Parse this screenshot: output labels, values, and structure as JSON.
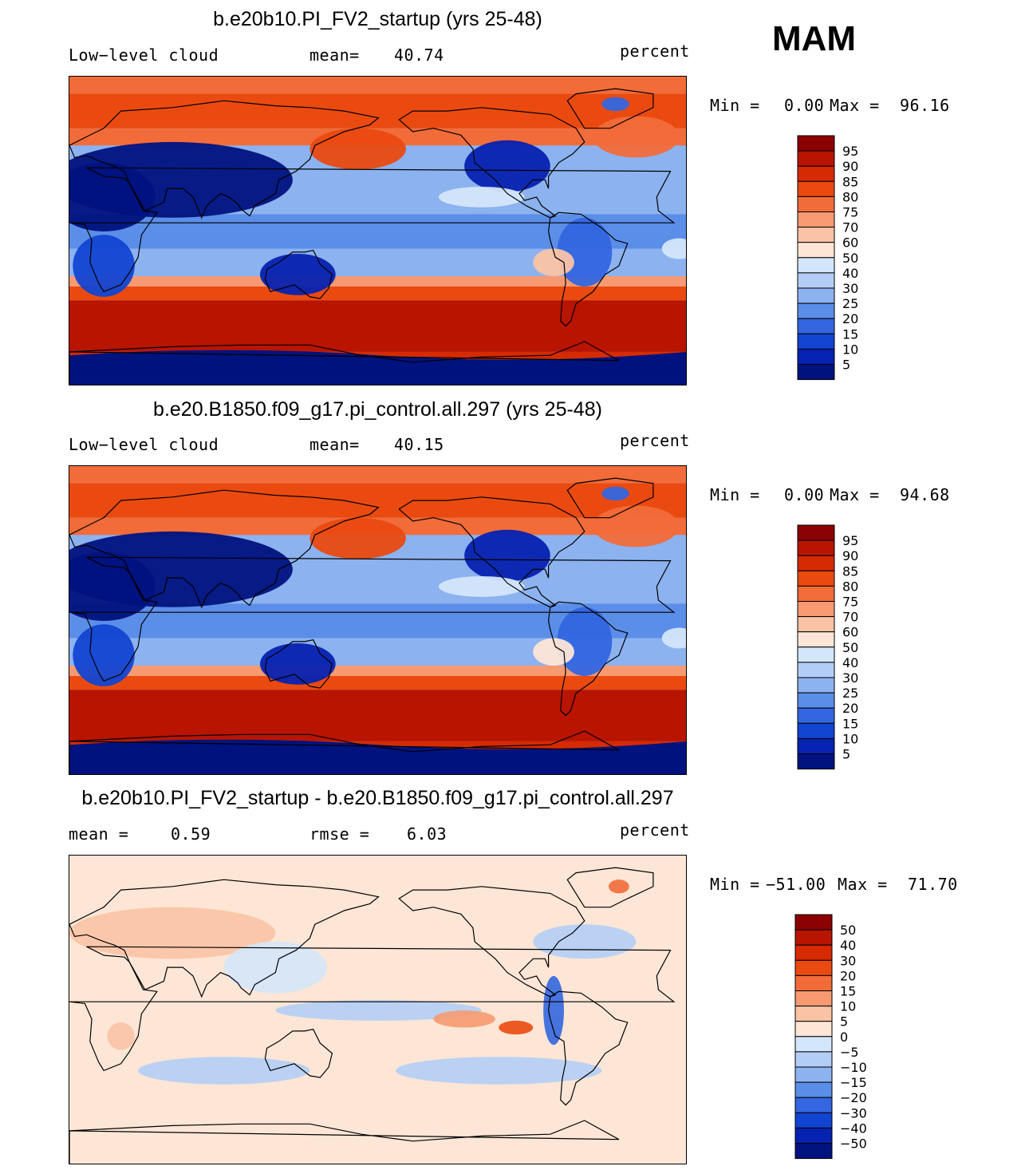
{
  "season": "MAM",
  "units": "percent",
  "chart_data": [
    {
      "type": "heatmap",
      "title": "b.e20b10.PI_FV2_startup (yrs 25-48)",
      "variable": "Low−level cloud",
      "stat_label": "mean=",
      "stat_value": "40.74",
      "units": "percent",
      "minmax": {
        "min_label": "Min =",
        "min": "0.00",
        "max_label": "Max =",
        "max": "96.16"
      },
      "colorbar": {
        "labels": [
          "95",
          "90",
          "85",
          "80",
          "75",
          "70",
          "60",
          "50",
          "40",
          "30",
          "25",
          "20",
          "15",
          "10",
          "5"
        ],
        "colors": [
          "#8b0000",
          "#b81400",
          "#d62a00",
          "#ea4a10",
          "#f26c3a",
          "#f79a72",
          "#fbc3a5",
          "#fde6d6",
          "#d4e6fa",
          "#b2cef6",
          "#8cb2f0",
          "#5b8ee8",
          "#3366e0",
          "#1244d2",
          "#0622b0",
          "#00127e"
        ]
      },
      "map_field": "model_a"
    },
    {
      "type": "heatmap",
      "title": "b.e20.B1850.f09_g17.pi_control.all.297 (yrs 25-48)",
      "variable": "Low−level cloud",
      "stat_label": "mean=",
      "stat_value": "40.15",
      "units": "percent",
      "minmax": {
        "min_label": "Min =",
        "min": "0.00",
        "max_label": "Max =",
        "max": "94.68"
      },
      "colorbar": {
        "labels": [
          "95",
          "90",
          "85",
          "80",
          "75",
          "70",
          "60",
          "50",
          "40",
          "30",
          "25",
          "20",
          "15",
          "10",
          "5"
        ],
        "colors": [
          "#8b0000",
          "#b81400",
          "#d62a00",
          "#ea4a10",
          "#f26c3a",
          "#f79a72",
          "#fbc3a5",
          "#fde6d6",
          "#d4e6fa",
          "#b2cef6",
          "#8cb2f0",
          "#5b8ee8",
          "#3366e0",
          "#1244d2",
          "#0622b0",
          "#00127e"
        ]
      },
      "map_field": "model_b"
    },
    {
      "type": "heatmap",
      "title": "b.e20b10.PI_FV2_startup - b.e20.B1850.f09_g17.pi_control.all.297",
      "variable": "mean =",
      "stat_label": "0.59",
      "stat_value": "rmse =",
      "rmse_value": "6.03",
      "units": "percent",
      "minmax": {
        "min_label": "Min =",
        "min": "−51.00",
        "max_label": "Max =",
        "max": "71.70"
      },
      "colorbar": {
        "labels": [
          "50",
          "40",
          "30",
          "20",
          "15",
          "10",
          "5",
          "0",
          "−5",
          "−10",
          "−15",
          "−20",
          "−30",
          "−40",
          "−50"
        ],
        "colors": [
          "#8b0000",
          "#b81400",
          "#d62a00",
          "#ea4a10",
          "#f26c3a",
          "#f79a72",
          "#fbc3a5",
          "#fde6d6",
          "#d4e6fa",
          "#b2cef6",
          "#8cb2f0",
          "#5b8ee8",
          "#3366e0",
          "#1244d2",
          "#0622b0",
          "#00127e"
        ]
      },
      "map_field": "difference"
    }
  ]
}
